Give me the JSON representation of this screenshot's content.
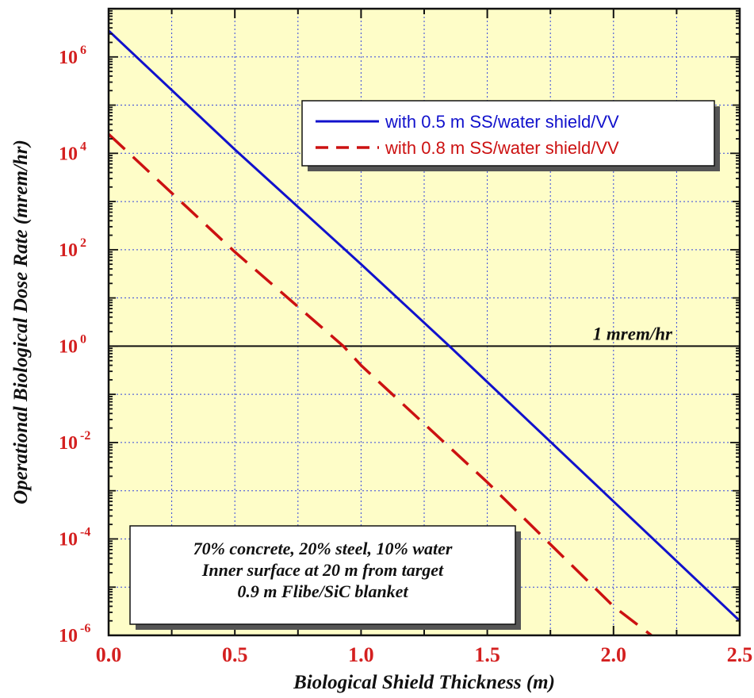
{
  "chart_data": {
    "type": "line",
    "xlabel": "Biological Shield Thickness (m)",
    "ylabel": "Operational Biological Dose Rate (mrem/hr)",
    "xlim": [
      0,
      2.5
    ],
    "ylim": [
      1e-06,
      10000000.0
    ],
    "yscale": "log",
    "grid": true,
    "background": "#fefdc8",
    "legend_position": "top-right",
    "x_ticks": [
      "0.0",
      "0.5",
      "1.0",
      "1.5",
      "2.0",
      "2.5"
    ],
    "y_ticks": [
      {
        "base": "10",
        "exp": "-6"
      },
      {
        "base": "10",
        "exp": "-4"
      },
      {
        "base": "10",
        "exp": "-2"
      },
      {
        "base": "10",
        "exp": "0"
      },
      {
        "base": "10",
        "exp": "2"
      },
      {
        "base": "10",
        "exp": "4"
      },
      {
        "base": "10",
        "exp": "6"
      }
    ],
    "series": [
      {
        "name": "with 0.5 m SS/water shield/VV",
        "color": "#1111cc",
        "style": "solid",
        "x": [
          0.0,
          0.5,
          1.0,
          1.35,
          1.5,
          2.0,
          2.5
        ],
        "y": [
          3500000.0,
          12000.0,
          50,
          1.0,
          0.18,
          0.0006,
          2e-06
        ]
      },
      {
        "name": "with 0.8 m SS/water shield/VV",
        "color": "#cc1111",
        "style": "dashed",
        "x": [
          0.0,
          0.5,
          0.93,
          1.0,
          1.5,
          2.0,
          2.15
        ],
        "y": [
          25000.0,
          90,
          1.0,
          0.4,
          0.0015,
          4e-06,
          1e-06
        ]
      }
    ],
    "reference_line": {
      "y": 1,
      "label": "1 mrem/hr"
    },
    "annotation": [
      "70% concrete, 20% steel, 10% water",
      "Inner surface at 20 m from target",
      "0.9 m Flibe/SiC blanket"
    ]
  }
}
